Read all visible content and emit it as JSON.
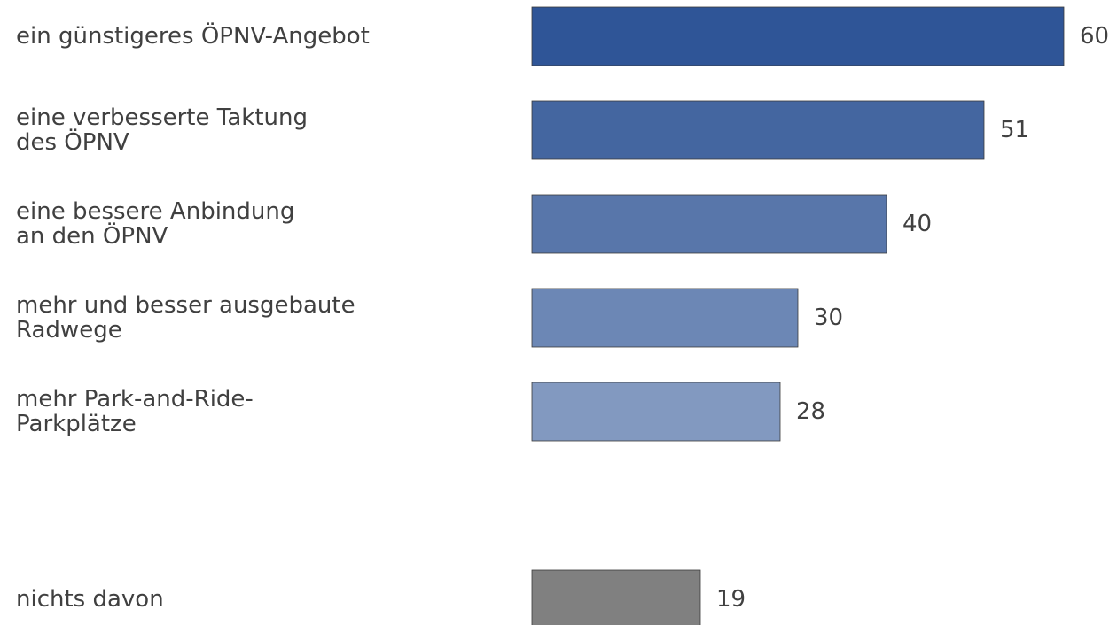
{
  "chart_data": {
    "type": "bar",
    "orientation": "horizontal",
    "categories": [
      "ein günstigeres ÖPNV-Angebot",
      "eine verbesserte Taktung\ndes ÖPNV",
      "eine bessere Anbindung\nan den ÖPNV",
      "mehr und besser ausgebaute\nRadwege",
      "mehr Park-and-Ride-\nParkplätze",
      "nichts davon"
    ],
    "values": [
      60,
      51,
      40,
      30,
      28,
      19
    ],
    "colors": [
      "#2f5597",
      "#4466a0",
      "#5876aa",
      "#6c87b5",
      "#8299c0",
      "#808080"
    ]
  }
}
